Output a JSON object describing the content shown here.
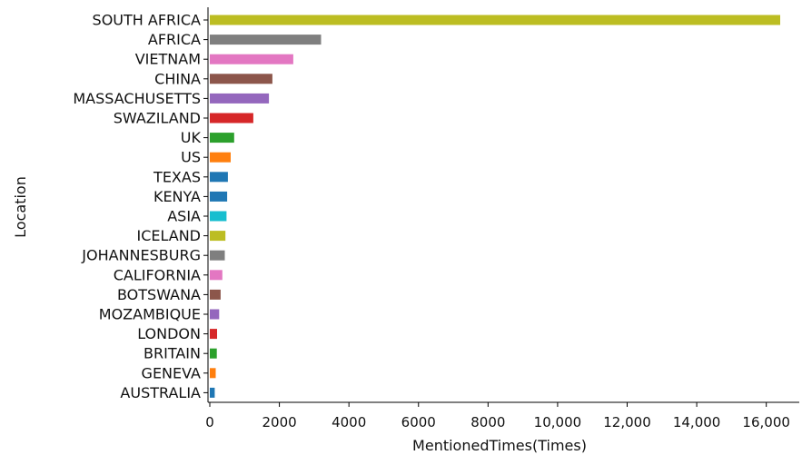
{
  "chart_data": {
    "type": "bar",
    "orientation": "horizontal",
    "title": "",
    "xlabel": "MentionedTimes(Times)",
    "ylabel": "Location",
    "xlim": [
      0,
      16900
    ],
    "xticks": [
      0,
      2000,
      4000,
      6000,
      8000,
      10000,
      12000,
      14000,
      16000
    ],
    "xtick_labels": [
      "0",
      "2000",
      "4000",
      "6000",
      "8000",
      "10,000",
      "12,000",
      "14,000",
      "16,000"
    ],
    "categories": [
      "SOUTH AFRICA",
      "AFRICA",
      "VIETNAM",
      "CHINA",
      "MASSACHUSETTS",
      "SWAZILAND",
      "UK",
      "US",
      "TEXAS",
      "KENYA",
      "ASIA",
      "ICELAND",
      "JOHANNESBURG",
      "CALIFORNIA",
      "BOTSWANA",
      "MOZAMBIQUE",
      "LONDON",
      "BRITAIN",
      "GENEVA",
      "AUSTRALIA"
    ],
    "values": [
      16400,
      3200,
      2400,
      1800,
      1700,
      1250,
      700,
      600,
      520,
      500,
      480,
      450,
      430,
      360,
      310,
      270,
      210,
      200,
      170,
      140
    ],
    "colors": [
      "#bcbd22",
      "#7f7f7f",
      "#e377c2",
      "#8c564b",
      "#9467bd",
      "#d62728",
      "#2ca02c",
      "#ff7f0e",
      "#1f77b4",
      "#1f77b4",
      "#17becf",
      "#bcbd22",
      "#7f7f7f",
      "#e377c2",
      "#8c564b",
      "#9467bd",
      "#d62728",
      "#2ca02c",
      "#ff7f0e",
      "#1f77b4"
    ],
    "grid": false,
    "legend": "none"
  }
}
